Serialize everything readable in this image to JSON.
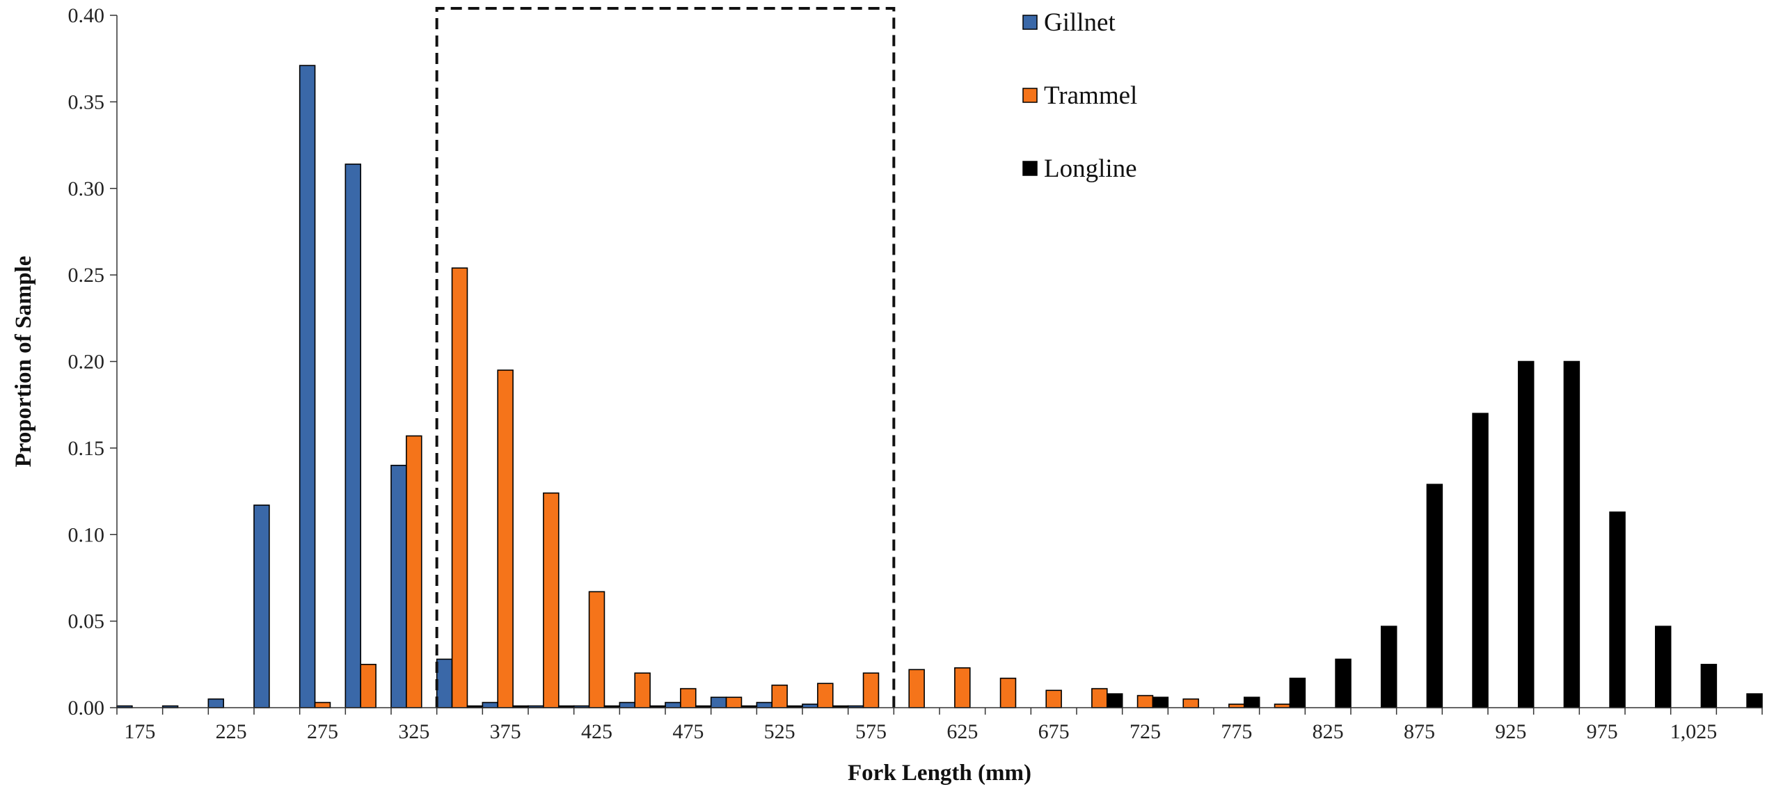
{
  "chart_data": {
    "type": "bar",
    "title": "",
    "xlabel": "Fork Length (mm)",
    "ylabel": "Proportion of Sample",
    "ylim": [
      0,
      0.4
    ],
    "y_ticks": [
      "0.00",
      "0.05",
      "0.10",
      "0.15",
      "0.20",
      "0.25",
      "0.30",
      "0.35",
      "0.40"
    ],
    "categories": [
      175,
      200,
      225,
      250,
      275,
      300,
      325,
      350,
      375,
      400,
      425,
      450,
      475,
      500,
      525,
      550,
      575,
      600,
      625,
      650,
      675,
      700,
      725,
      750,
      775,
      800,
      825,
      850,
      875,
      900,
      925,
      950,
      975,
      1000,
      1025,
      1050
    ],
    "x_tick_labels": [
      "175",
      "225",
      "275",
      "325",
      "375",
      "425",
      "475",
      "525",
      "575",
      "625",
      "675",
      "725",
      "775",
      "825",
      "875",
      "925",
      "975",
      "1,025"
    ],
    "x_tick_label_values": [
      175,
      225,
      275,
      325,
      375,
      425,
      475,
      525,
      575,
      625,
      675,
      725,
      775,
      825,
      875,
      925,
      975,
      1025
    ],
    "legend_position": "top-center",
    "grid": false,
    "series": [
      {
        "name": "Gillnet",
        "color": "#3A68A8",
        "values": [
          0.001,
          0.001,
          0.005,
          0.117,
          0.371,
          0.314,
          0.14,
          0.028,
          0.003,
          0.001,
          0.001,
          0.003,
          0.003,
          0.006,
          0.003,
          0.002,
          0.001,
          0,
          0,
          0,
          0,
          0,
          0,
          0,
          0,
          0,
          0,
          0,
          0,
          0,
          0,
          0,
          0,
          0,
          0,
          0
        ]
      },
      {
        "name": "Trammel",
        "color": "#F5741A",
        "values": [
          0,
          0,
          0,
          0,
          0.003,
          0.025,
          0.157,
          0.254,
          0.195,
          0.124,
          0.067,
          0.02,
          0.011,
          0.006,
          0.013,
          0.014,
          0.02,
          0.022,
          0.023,
          0.017,
          0.01,
          0.011,
          0.007,
          0.005,
          0.002,
          0.002,
          0,
          0,
          0,
          0,
          0,
          0,
          0,
          0,
          0,
          0
        ]
      },
      {
        "name": "Longline",
        "color": "#000000",
        "values": [
          0,
          0,
          0,
          0,
          0,
          0,
          0,
          0.001,
          0.001,
          0.001,
          0.001,
          0.001,
          0.001,
          0.001,
          0.001,
          0.001,
          0,
          0,
          0,
          0,
          0,
          0.008,
          0.006,
          0,
          0.006,
          0.017,
          0.028,
          0.047,
          0.129,
          0.17,
          0.2,
          0.2,
          0.113,
          0.047,
          0.025,
          0.008
        ]
      }
    ],
    "annotations": [
      {
        "type": "dashed-box",
        "x_range": [
          337.5,
          587.5
        ],
        "y_range": [
          0,
          0.4
        ]
      }
    ]
  }
}
